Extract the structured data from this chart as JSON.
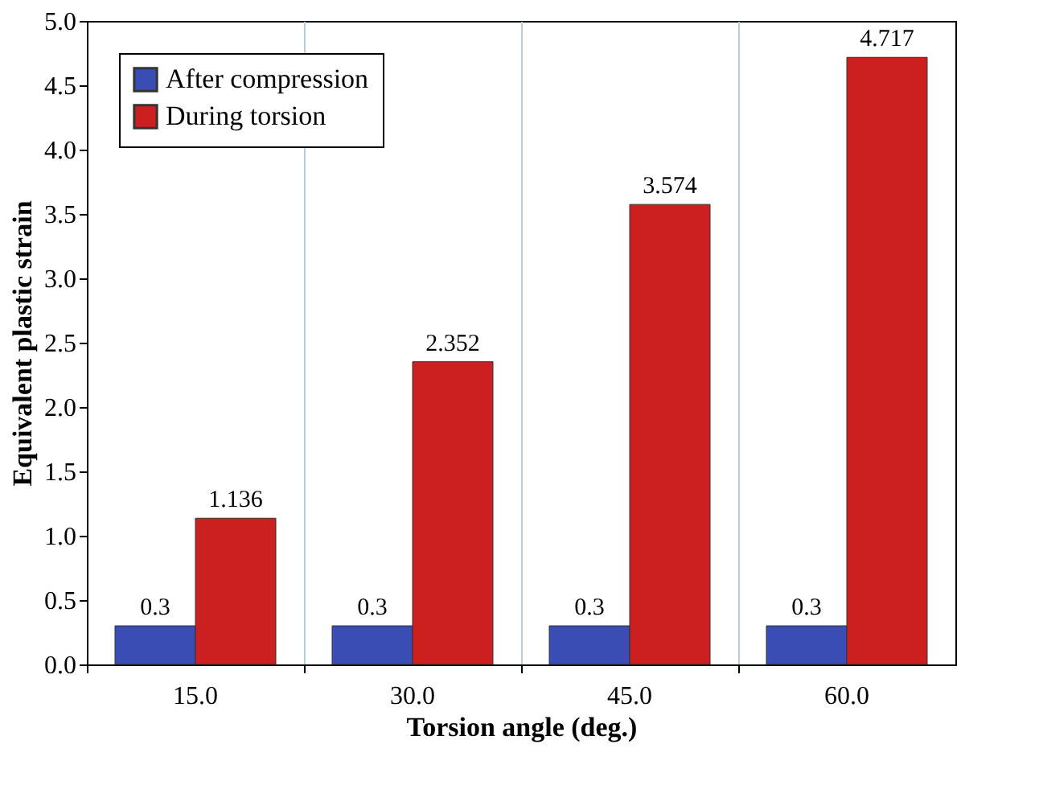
{
  "chart_data": {
    "type": "bar",
    "xlabel": "Torsion angle (deg.)",
    "ylabel": "Equivalent  plastic strain",
    "categories": [
      "15.0",
      "30.0",
      "45.0",
      "60.0"
    ],
    "series": [
      {
        "name": "After compression",
        "color": "#3a4db5",
        "values": [
          0.3,
          0.3,
          0.3,
          0.3
        ]
      },
      {
        "name": "During torsion",
        "color": "#cc2020",
        "values": [
          1.136,
          2.352,
          3.574,
          4.717
        ]
      }
    ],
    "ylim": [
      0,
      5
    ],
    "yticks": [
      {
        "value": 0,
        "label": "0.0"
      },
      {
        "value": 0.5,
        "label": "0.5"
      },
      {
        "value": 1,
        "label": "1.0"
      },
      {
        "value": 1.5,
        "label": "1.5"
      },
      {
        "value": 2,
        "label": "2.0"
      },
      {
        "value": 2.5,
        "label": "2.5"
      },
      {
        "value": 3,
        "label": "3.0"
      },
      {
        "value": 3.5,
        "label": "3.5"
      },
      {
        "value": 4,
        "label": "4.0"
      },
      {
        "value": 4.5,
        "label": "4.5"
      },
      {
        "value": 5,
        "label": "5.0"
      }
    ],
    "data_labels": true,
    "grid": "x",
    "legend": "top left"
  }
}
